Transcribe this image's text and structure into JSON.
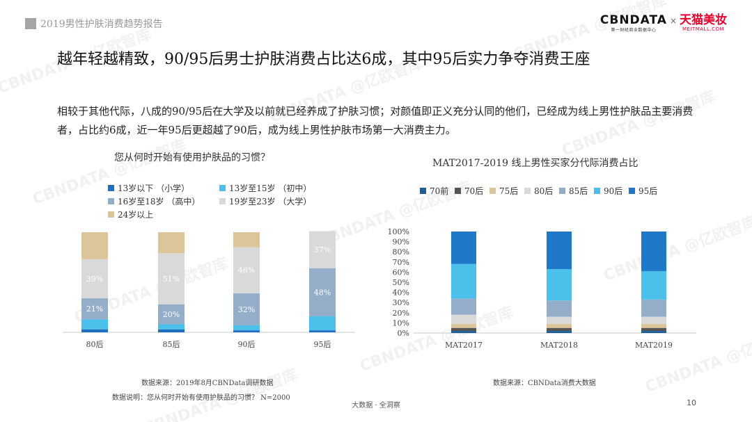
{
  "header": {
    "report_tag": "2019男性护肤消费趋势报告",
    "logo_cbn": "CBNDATA",
    "logo_cbn_sub": "第一财经商业数据中心",
    "logo_x": "×",
    "logo_tmall": "天猫美妆",
    "logo_tmall_sub": "MEITMALL.COM"
  },
  "headline": "越年轻越精致，90/95后男士护肤消费占比达6成，其中95后实力争夺消费王座",
  "description": "相较于其他代际，八成的90/95后在大学及以前就已经养成了护肤习惯；对颜值即正义充分认同的他们，已经成为线上男性护肤品主要消费者，占比约6成，近一年95后更超越了90后，成为线上男性护肤市场第一大消费主力。",
  "watermark": "CBNDATA @亿欧智库",
  "chart_data": [
    {
      "type": "bar",
      "stacked": true,
      "title": "您从何时开始有使用护肤品的习惯？",
      "categories": [
        "80后",
        "85后",
        "90后",
        "95后"
      ],
      "series": [
        {
          "name": "13岁以下 （小学）",
          "color": "#1f6fc0",
          "values": [
            3,
            3,
            2,
            2
          ]
        },
        {
          "name": "13岁至15岁 （初中）",
          "color": "#4bc0ea",
          "values": [
            10,
            5,
            5,
            14
          ]
        },
        {
          "name": "16岁至18岁 （高中）",
          "color": "#94aec9",
          "values": [
            21,
            20,
            32,
            48
          ]
        },
        {
          "name": "19岁至23岁 （大学）",
          "color": "#d9d9d9",
          "values": [
            39,
            51,
            46,
            37
          ]
        },
        {
          "name": "24岁以上",
          "color": "#dcc699",
          "values": [
            27,
            21,
            15,
            0
          ]
        }
      ],
      "data_labels": [
        {
          "series": 2,
          "category": 0,
          "text": "21%"
        },
        {
          "series": 2,
          "category": 1,
          "text": "20%"
        },
        {
          "series": 2,
          "category": 2,
          "text": "32%"
        },
        {
          "series": 2,
          "category": 3,
          "text": "48%"
        },
        {
          "series": 3,
          "category": 0,
          "text": "39%"
        },
        {
          "series": 3,
          "category": 1,
          "text": "51%"
        },
        {
          "series": 3,
          "category": 2,
          "text": "46%"
        },
        {
          "series": 3,
          "category": 3,
          "text": "37%"
        }
      ],
      "ylim": [
        0,
        100
      ],
      "legend": "top"
    },
    {
      "type": "bar",
      "stacked": true,
      "title": "MAT2017-2019 线上男性买家分代际消费占比",
      "categories": [
        "MAT2017",
        "MAT2018",
        "MAT2019"
      ],
      "series": [
        {
          "name": "70前",
          "color": "#1a5e9b",
          "values": [
            2,
            2,
            2
          ]
        },
        {
          "name": "70后",
          "color": "#555555",
          "values": [
            3,
            3,
            3
          ]
        },
        {
          "name": "75后",
          "color": "#dcc699",
          "values": [
            4,
            4,
            4
          ]
        },
        {
          "name": "80后",
          "color": "#d9d9d9",
          "values": [
            9,
            7,
            7
          ]
        },
        {
          "name": "85后",
          "color": "#94aec9",
          "values": [
            16,
            16,
            17
          ]
        },
        {
          "name": "90后",
          "color": "#4bc0ea",
          "values": [
            34,
            31,
            28
          ]
        },
        {
          "name": "95后",
          "color": "#1f78c8",
          "values": [
            32,
            37,
            39
          ]
        }
      ],
      "yticks": [
        "0%",
        "10%",
        "20%",
        "30%",
        "40%",
        "50%",
        "60%",
        "70%",
        "80%",
        "90%",
        "100%"
      ],
      "ylim": [
        0,
        100
      ],
      "legend": "top"
    }
  ],
  "notes": {
    "left_source": "数据来源：2019年8月CBNData调研数据",
    "left_description": "数据说明：您从何时开始有使用护肤品的习惯？ N=2000",
    "right_source": "数据来源：CBNData消费大数据"
  },
  "footer": "大数据 · 全洞察",
  "page_number": "10"
}
